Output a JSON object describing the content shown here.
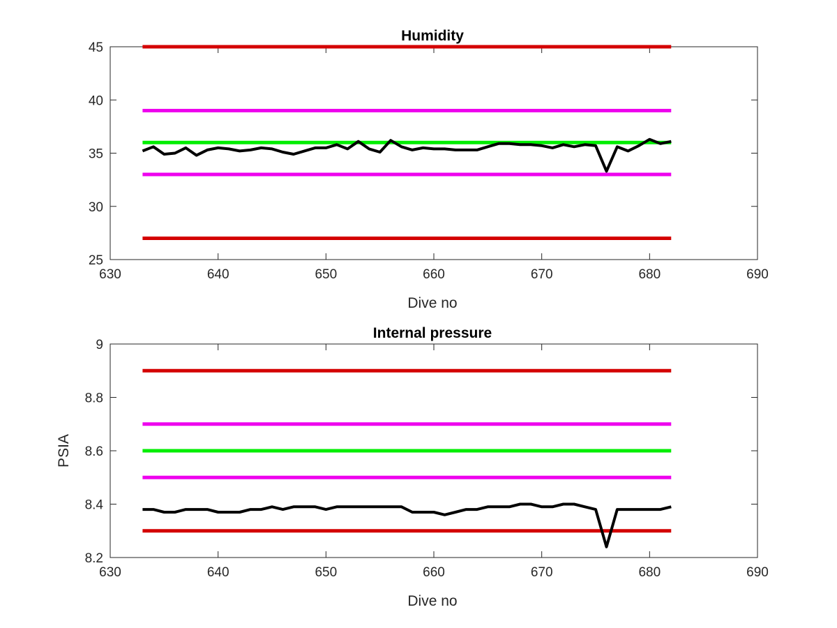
{
  "chart_data": [
    {
      "type": "line",
      "title": "Humidity",
      "xlabel": "Dive no",
      "ylabel": "",
      "xlim": [
        630,
        690
      ],
      "ylim": [
        25,
        45
      ],
      "xticks": [
        630,
        640,
        650,
        660,
        670,
        680,
        690
      ],
      "yticks": [
        25,
        30,
        35,
        40,
        45
      ],
      "grid": false,
      "thresholds": [
        {
          "value": 45,
          "x": [
            633,
            682
          ],
          "color": "#d40000"
        },
        {
          "value": 39,
          "x": [
            633,
            682
          ],
          "color": "#ee00ee"
        },
        {
          "value": 36,
          "x": [
            633,
            682
          ],
          "color": "#00ee00"
        },
        {
          "value": 33,
          "x": [
            633,
            682
          ],
          "color": "#ee00ee"
        },
        {
          "value": 27,
          "x": [
            633,
            682
          ],
          "color": "#d40000"
        }
      ],
      "series": [
        {
          "color": "#000000",
          "x": [
            633,
            634,
            635,
            636,
            637,
            638,
            639,
            640,
            641,
            642,
            643,
            644,
            645,
            646,
            647,
            648,
            649,
            650,
            651,
            652,
            653,
            654,
            655,
            656,
            657,
            658,
            659,
            660,
            661,
            662,
            663,
            664,
            665,
            666,
            667,
            668,
            669,
            670,
            671,
            672,
            673,
            674,
            675,
            676,
            677,
            678,
            679,
            680,
            681,
            682
          ],
          "y": [
            35.2,
            35.6,
            34.9,
            35.0,
            35.5,
            34.8,
            35.3,
            35.5,
            35.4,
            35.2,
            35.3,
            35.5,
            35.4,
            35.1,
            34.9,
            35.2,
            35.5,
            35.5,
            35.8,
            35.4,
            36.1,
            35.4,
            35.1,
            36.2,
            35.6,
            35.3,
            35.5,
            35.4,
            35.4,
            35.3,
            35.3,
            35.3,
            35.6,
            35.9,
            35.9,
            35.8,
            35.8,
            35.7,
            35.5,
            35.8,
            35.6,
            35.8,
            35.7,
            33.3,
            35.6,
            35.2,
            35.7,
            36.3,
            35.9,
            36.1
          ]
        }
      ]
    },
    {
      "type": "line",
      "title": "Internal pressure",
      "xlabel": "Dive no",
      "ylabel": "PSIA",
      "xlim": [
        630,
        690
      ],
      "ylim": [
        8.2,
        9
      ],
      "xticks": [
        630,
        640,
        650,
        660,
        670,
        680,
        690
      ],
      "yticks": [
        8.2,
        8.4,
        8.6,
        8.8,
        9
      ],
      "grid": false,
      "thresholds": [
        {
          "value": 8.9,
          "x": [
            633,
            682
          ],
          "color": "#d40000"
        },
        {
          "value": 8.7,
          "x": [
            633,
            682
          ],
          "color": "#ee00ee"
        },
        {
          "value": 8.6,
          "x": [
            633,
            682
          ],
          "color": "#00ee00"
        },
        {
          "value": 8.5,
          "x": [
            633,
            682
          ],
          "color": "#ee00ee"
        },
        {
          "value": 8.3,
          "x": [
            633,
            682
          ],
          "color": "#d40000"
        }
      ],
      "series": [
        {
          "color": "#000000",
          "x": [
            633,
            634,
            635,
            636,
            637,
            638,
            639,
            640,
            641,
            642,
            643,
            644,
            645,
            646,
            647,
            648,
            649,
            650,
            651,
            652,
            653,
            654,
            655,
            656,
            657,
            658,
            659,
            660,
            661,
            662,
            663,
            664,
            665,
            666,
            667,
            668,
            669,
            670,
            671,
            672,
            673,
            674,
            675,
            676,
            677,
            678,
            679,
            680,
            681,
            682
          ],
          "y": [
            8.38,
            8.38,
            8.37,
            8.37,
            8.38,
            8.38,
            8.38,
            8.37,
            8.37,
            8.37,
            8.38,
            8.38,
            8.39,
            8.38,
            8.39,
            8.39,
            8.39,
            8.38,
            8.39,
            8.39,
            8.39,
            8.39,
            8.39,
            8.39,
            8.39,
            8.37,
            8.37,
            8.37,
            8.36,
            8.37,
            8.38,
            8.38,
            8.39,
            8.39,
            8.39,
            8.4,
            8.4,
            8.39,
            8.39,
            8.4,
            8.4,
            8.39,
            8.38,
            8.24,
            8.38,
            8.38,
            8.38,
            8.38,
            8.38,
            8.39
          ]
        }
      ]
    }
  ]
}
